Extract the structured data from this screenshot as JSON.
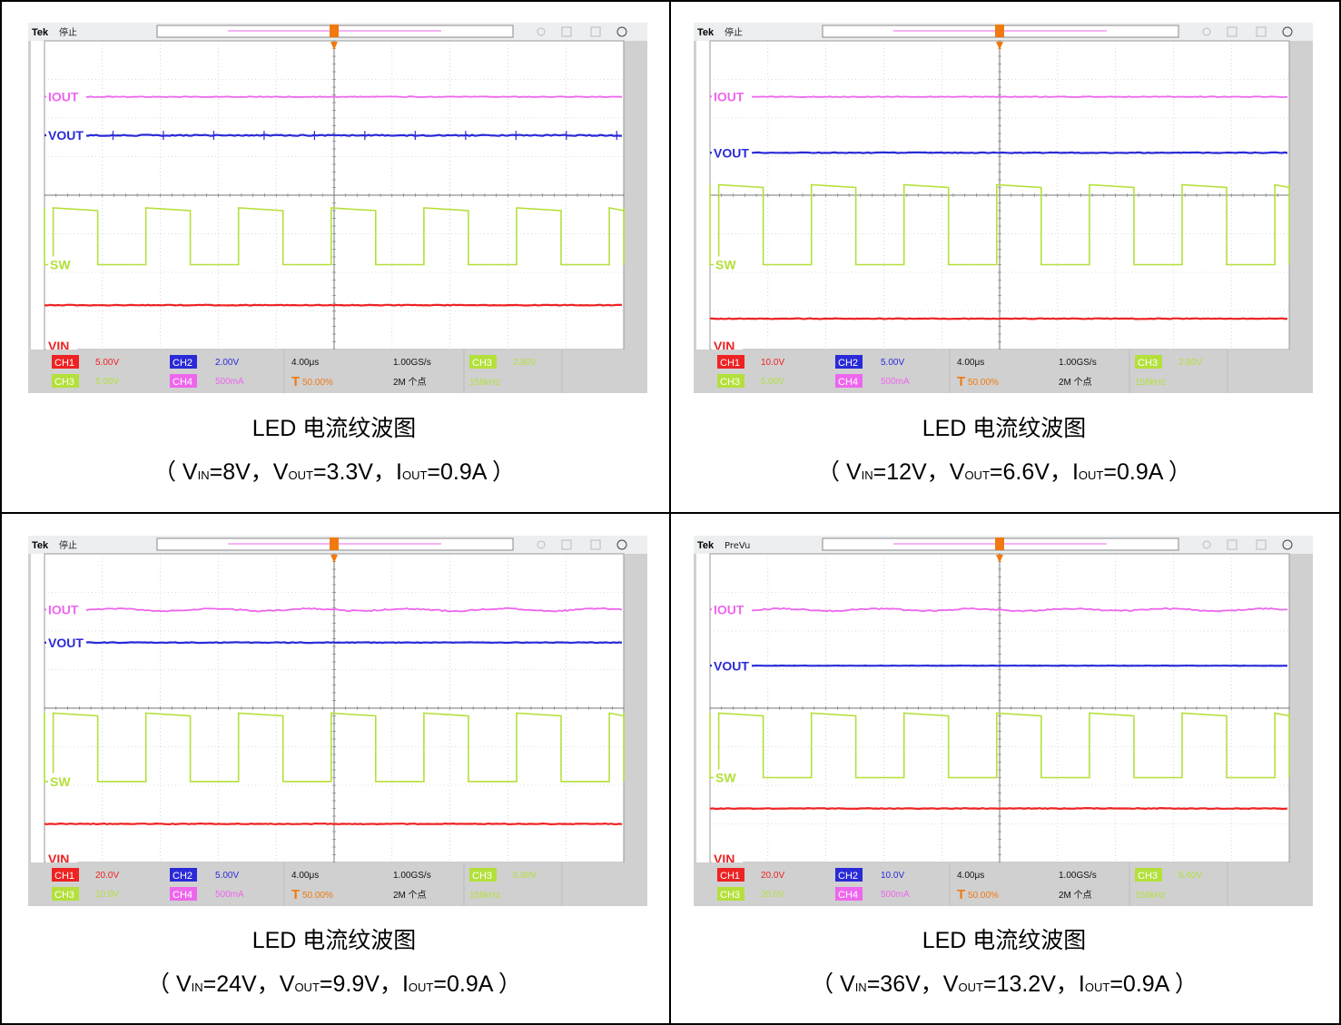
{
  "panels": [
    {
      "status": "停止",
      "ch1_scale": "5.00V",
      "ch2_scale": "2.00V",
      "ch3_scale": "5.00V",
      "ch4_scale": "500mA",
      "timebase": "4.00μs",
      "sample_rate": "1.00GS/s",
      "trigger_pos": "50.00%",
      "record": "2M 个点",
      "trigger_level": "2.80V",
      "freq": "156kHz",
      "caption_title": "LED 电流纹波图",
      "caption_vin": "8V",
      "caption_vout": "3.3V",
      "caption_iout": "0.9A"
    },
    {
      "status": "停止",
      "ch1_scale": "10.0V",
      "ch2_scale": "5.00V",
      "ch3_scale": "5.00V",
      "ch4_scale": "500mA",
      "timebase": "4.00μs",
      "sample_rate": "1.00GS/s",
      "trigger_pos": "50.00%",
      "record": "2M 个点",
      "trigger_level": "2.80V",
      "freq": "156kHz",
      "caption_title": "LED 电流纹波图",
      "caption_vin": "12V",
      "caption_vout": "6.6V",
      "caption_iout": "0.9A"
    },
    {
      "status": "停止",
      "ch1_scale": "20.0V",
      "ch2_scale": "5.00V",
      "ch3_scale": "10.0V",
      "ch4_scale": "500mA",
      "timebase": "4.00μs",
      "sample_rate": "1.00GS/s",
      "trigger_pos": "50.00%",
      "record": "2M 个点",
      "trigger_level": "5.60V",
      "freq": "156kHz",
      "caption_title": "LED 电流纹波图",
      "caption_vin": "24V",
      "caption_vout": "9.9V",
      "caption_iout": "0.9A"
    },
    {
      "status": "PreVu",
      "ch1_scale": "20.0V",
      "ch2_scale": "10.0V",
      "ch3_scale": "20.0V",
      "ch4_scale": "500mA",
      "timebase": "4.00μs",
      "sample_rate": "1.00GS/s",
      "trigger_pos": "50.00%",
      "record": "2M 个点",
      "trigger_level": "5.60V",
      "freq": "156kHz",
      "caption_title": "LED 电流纹波图",
      "caption_vin": "36V",
      "caption_vout": "13.2V",
      "caption_iout": "0.9A"
    }
  ],
  "labels": {
    "brand": "Tek",
    "ch1": "CH1",
    "ch2": "CH2",
    "ch3": "CH3",
    "ch4": "CH4",
    "trace_iout": "IOUT",
    "trace_vout": "VOUT",
    "trace_sw": "SW",
    "trace_vin": "VIN",
    "trig_letter": "T",
    "cap_open": "（ V",
    "sub_in": "IN",
    "sub_out": "OUT",
    "cap_close": " ）",
    "eq": "=",
    "comma": "，",
    "v": "V",
    "i": "I"
  },
  "colors": {
    "ch1": "#ee2222",
    "ch2": "#2a2ad8",
    "ch3": "#b3e03a",
    "ch4": "#ee66ee",
    "trigger": "#f07a10",
    "bezel": "#d0d0d0",
    "graticule": "#888888"
  },
  "chart_data": [
    {
      "type": "line",
      "xlabel": "",
      "ylabel": "",
      "x_unit": "μs",
      "x_range": [
        -20,
        20
      ],
      "series": [
        {
          "name": "IOUT",
          "channel": "CH4",
          "level_div": 2.55,
          "ripple": "small"
        },
        {
          "name": "VOUT",
          "channel": "CH2",
          "level_div": 1.55,
          "ripple": "spikes"
        },
        {
          "name": "SW",
          "channel": "CH3",
          "high_div": -0.4,
          "low_div": -1.8,
          "period_us": 6.4
        },
        {
          "name": "VIN",
          "channel": "CH1",
          "level_div": -2.85
        }
      ]
    },
    {
      "type": "line",
      "xlabel": "",
      "ylabel": "",
      "x_unit": "μs",
      "x_range": [
        -20,
        20
      ],
      "series": [
        {
          "name": "IOUT",
          "channel": "CH4",
          "level_div": 2.55,
          "ripple": "small"
        },
        {
          "name": "VOUT",
          "channel": "CH2",
          "level_div": 1.1,
          "ripple": "small"
        },
        {
          "name": "SW",
          "channel": "CH3",
          "high_div": 0.2,
          "low_div": -1.8,
          "period_us": 6.4
        },
        {
          "name": "VIN",
          "channel": "CH1",
          "level_div": -3.2
        }
      ]
    },
    {
      "type": "line",
      "xlabel": "",
      "ylabel": "",
      "x_unit": "μs",
      "x_range": [
        -20,
        20
      ],
      "series": [
        {
          "name": "IOUT",
          "channel": "CH4",
          "level_div": 2.55,
          "ripple": "medium"
        },
        {
          "name": "VOUT",
          "channel": "CH2",
          "level_div": 1.7,
          "ripple": "small"
        },
        {
          "name": "SW",
          "channel": "CH3",
          "high_div": -0.2,
          "low_div": -1.9,
          "period_us": 6.4
        },
        {
          "name": "VIN",
          "channel": "CH1",
          "level_div": -3.0
        }
      ]
    },
    {
      "type": "line",
      "xlabel": "",
      "ylabel": "",
      "x_unit": "μs",
      "x_range": [
        -20,
        20
      ],
      "series": [
        {
          "name": "IOUT",
          "channel": "CH4",
          "level_div": 2.55,
          "ripple": "medium"
        },
        {
          "name": "VOUT",
          "channel": "CH2",
          "level_div": 1.1,
          "ripple": "none"
        },
        {
          "name": "SW",
          "channel": "CH3",
          "high_div": -0.2,
          "low_div": -1.8,
          "period_us": 6.4
        },
        {
          "name": "VIN",
          "channel": "CH1",
          "level_div": -2.6
        }
      ]
    }
  ]
}
